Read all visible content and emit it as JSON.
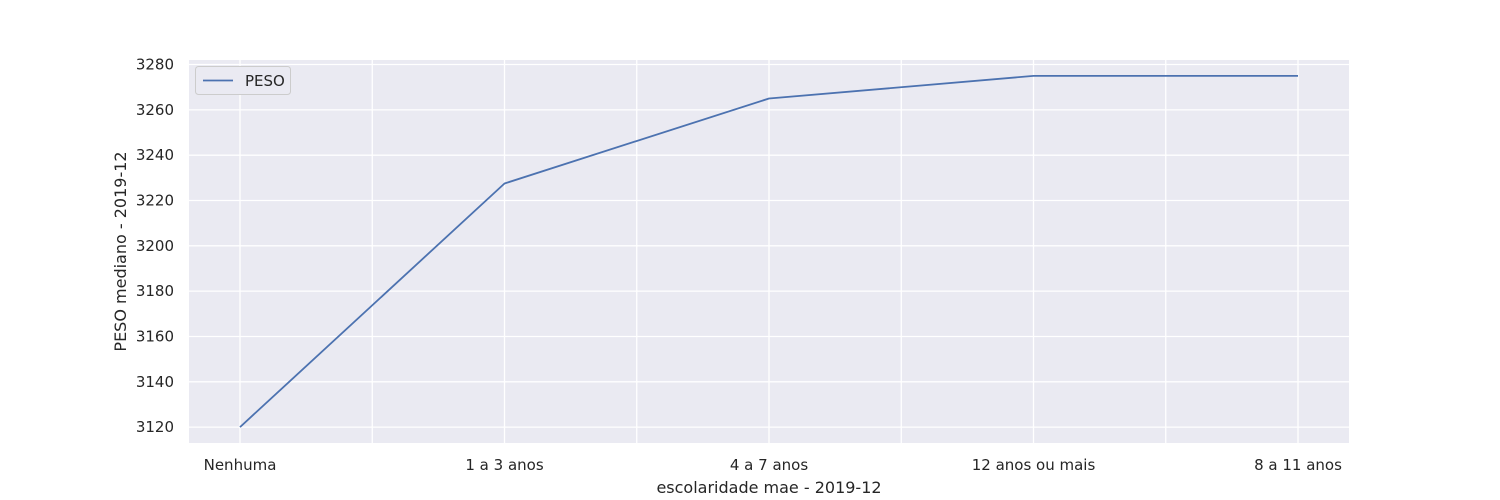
{
  "chart_data": {
    "type": "line",
    "categories": [
      "Nenhuma",
      "1 a 3 anos",
      "4 a 7 anos",
      "12 anos ou mais",
      "8 a 11 anos"
    ],
    "series": [
      {
        "name": "PESO",
        "values": [
          3120,
          3227.5,
          3265,
          3275,
          3275
        ],
        "color": "#4c72b0"
      }
    ],
    "xlabel": "escolaridade mae - 2019-12",
    "ylabel": "PESO mediano - 2019-12",
    "ylim": [
      3113,
      3282
    ],
    "yticks": [
      3120,
      3140,
      3160,
      3180,
      3200,
      3220,
      3240,
      3260,
      3280
    ],
    "grid": true,
    "legend_position": "top-left",
    "background_color": "#eaeaf2",
    "grid_color": "#ffffff"
  }
}
